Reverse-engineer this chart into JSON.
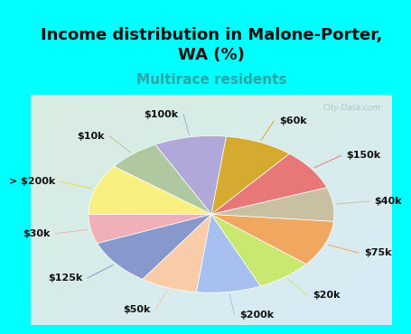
{
  "title": "Income distribution in Malone-Porter,\nWA (%)",
  "subtitle": "Multirace residents",
  "title_fontsize": 13,
  "subtitle_fontsize": 11,
  "subtitle_color": "#2aa8a8",
  "bg_top_color": "#00ffff",
  "bg_chart_color_tl": "#d0ede0",
  "bg_chart_color_br": "#c8e8f8",
  "watermark": "City-Data.com",
  "labels": [
    "$100k",
    "$10k",
    "> $200k",
    "$30k",
    "$125k",
    "$50k",
    "$200k",
    "$20k",
    "$75k",
    "$40k",
    "$150k",
    "$60k"
  ],
  "sizes": [
    9.5,
    7.0,
    10.5,
    6.0,
    9.5,
    7.5,
    8.5,
    7.5,
    9.5,
    7.0,
    8.5,
    9.0
  ],
  "colors": [
    "#b0a8d8",
    "#b0c8a0",
    "#f8f080",
    "#f0b0b8",
    "#8898cc",
    "#f8cca8",
    "#a8c0f0",
    "#c8e870",
    "#f0a860",
    "#c8c0a0",
    "#e87878",
    "#d4aa30"
  ],
  "label_fontsize": 8,
  "startangle": 83,
  "line_colors": [
    "#b0a8d8",
    "#b0c8a0",
    "#e8d848",
    "#f0b0b8",
    "#8898cc",
    "#f8cca8",
    "#a8c0f0",
    "#c8e870",
    "#f0a860",
    "#c8c0a0",
    "#e87878",
    "#d4aa30"
  ]
}
